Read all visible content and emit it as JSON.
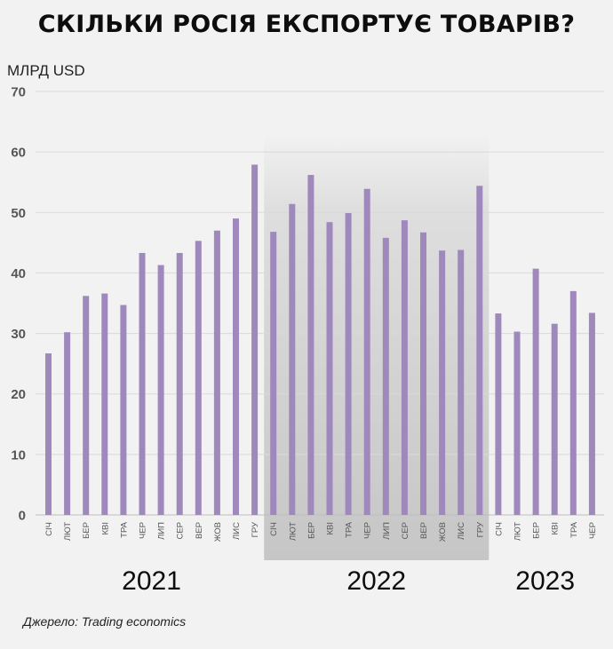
{
  "title": "СКІЛЬКИ РОСІЯ ЕКСПОРТУЄ ТОВАРІВ?",
  "source": "Джерело: Trading economics",
  "chart_data": {
    "type": "bar",
    "ylabel": "МЛРД USD",
    "ylim": [
      0,
      70
    ],
    "yticks": [
      0,
      10,
      20,
      30,
      40,
      50,
      60,
      70
    ],
    "grid": true,
    "bar_color": "#9f88bb",
    "highlight_year": "2022",
    "highlight_color": "#c8c8c8",
    "years": [
      {
        "year": "2021",
        "months": [
          "СІЧ",
          "ЛЮТ",
          "БЕР",
          "КВІ",
          "ТРА",
          "ЧЕР",
          "ЛИП",
          "СЕР",
          "ВЕР",
          "ЖОВ",
          "ЛИС",
          "ГРУ"
        ],
        "values": [
          26.7,
          30.2,
          36.2,
          36.6,
          34.7,
          43.3,
          41.3,
          43.3,
          45.3,
          47.0,
          49.0,
          57.9
        ]
      },
      {
        "year": "2022",
        "months": [
          "СІЧ",
          "ЛЮТ",
          "БЕР",
          "КВІ",
          "ТРА",
          "ЧЕР",
          "ЛИП",
          "СЕР",
          "ВЕР",
          "ЖОВ",
          "ЛИС",
          "ГРУ"
        ],
        "values": [
          46.8,
          51.4,
          56.2,
          48.4,
          49.9,
          53.9,
          45.8,
          48.7,
          46.7,
          43.7,
          43.8,
          54.4
        ]
      },
      {
        "year": "2023",
        "months": [
          "СІЧ",
          "ЛЮТ",
          "БЕР",
          "КВІ",
          "ТРА",
          "ЧЕР"
        ],
        "values": [
          33.3,
          30.3,
          40.7,
          31.6,
          37.0,
          33.4
        ]
      }
    ]
  }
}
